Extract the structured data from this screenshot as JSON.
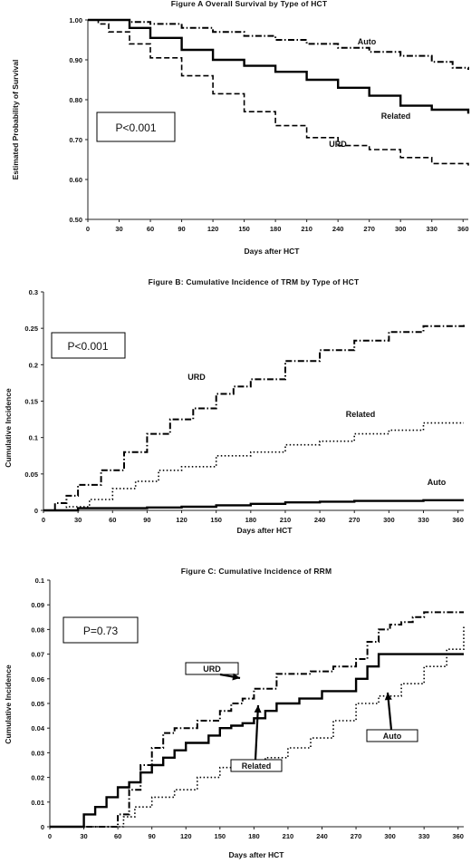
{
  "charts": [
    {
      "title": "Figure A Overall Survival by Type of HCT",
      "xlabel": "Days after HCT",
      "ylabel": "Estimated Probability of Survival",
      "pvalue": "P<0.001",
      "x_ticks": [
        "0",
        "30",
        "60",
        "90",
        "120",
        "150",
        "180",
        "210",
        "240",
        "270",
        "300",
        "330",
        "360"
      ],
      "y_ticks": [
        "0.50",
        "0.60",
        "0.70",
        "0.80",
        "0.90",
        "1.00"
      ],
      "series_labels": [
        "Auto",
        "Related",
        "URD"
      ]
    },
    {
      "title": "Figure B: Cumulative Incidence of TRM by Type of HCT",
      "xlabel": "Days after HCT",
      "ylabel": "Cumulative Incidence",
      "pvalue": "P<0.001",
      "x_ticks": [
        "0",
        "30",
        "60",
        "90",
        "120",
        "150",
        "180",
        "210",
        "240",
        "270",
        "300",
        "330",
        "360"
      ],
      "y_ticks": [
        "0",
        "0.05",
        "0.1",
        "0.15",
        "0.2",
        "0.25",
        "0.3"
      ],
      "series_labels": [
        "URD",
        "Related",
        "Auto"
      ]
    },
    {
      "title": "Figure C: Cumulative Incidence of RRM",
      "xlabel": "Days after HCT",
      "ylabel": "Cumulative Incidence",
      "pvalue": "P=0.73",
      "x_ticks": [
        "0",
        "30",
        "60",
        "90",
        "120",
        "150",
        "180",
        "210",
        "240",
        "270",
        "300",
        "330",
        "360"
      ],
      "y_ticks": [
        "0",
        "0.01",
        "0.02",
        "0.03",
        "0.04",
        "0.05",
        "0.06",
        "0.07",
        "0.08",
        "0.09",
        "0.1"
      ],
      "series_labels": [
        "URD",
        "Related",
        "Auto"
      ]
    }
  ],
  "chart_data": [
    {
      "type": "line",
      "title": "Figure A Overall Survival by Type of HCT",
      "xlabel": "Days after HCT",
      "ylabel": "Estimated Probability of Survival",
      "xlim": [
        0,
        365
      ],
      "ylim": [
        0.5,
        1.0
      ],
      "series": [
        {
          "name": "Auto",
          "style": "dash-dot",
          "x": [
            0,
            20,
            40,
            60,
            90,
            120,
            150,
            180,
            210,
            240,
            270,
            300,
            330,
            350,
            365
          ],
          "y": [
            1.0,
            1.0,
            0.995,
            0.99,
            0.98,
            0.97,
            0.96,
            0.95,
            0.94,
            0.93,
            0.92,
            0.91,
            0.895,
            0.88,
            0.875
          ]
        },
        {
          "name": "Related",
          "style": "solid",
          "x": [
            0,
            20,
            40,
            60,
            90,
            120,
            150,
            180,
            210,
            240,
            270,
            300,
            330,
            365
          ],
          "y": [
            1.0,
            1.0,
            0.98,
            0.955,
            0.925,
            0.9,
            0.885,
            0.87,
            0.85,
            0.83,
            0.81,
            0.785,
            0.775,
            0.765
          ]
        },
        {
          "name": "URD",
          "style": "dashed",
          "x": [
            0,
            10,
            20,
            40,
            60,
            90,
            120,
            150,
            180,
            210,
            240,
            270,
            300,
            330,
            365
          ],
          "y": [
            1.0,
            0.99,
            0.97,
            0.94,
            0.905,
            0.86,
            0.815,
            0.77,
            0.735,
            0.705,
            0.685,
            0.675,
            0.655,
            0.64,
            0.635
          ]
        }
      ]
    },
    {
      "type": "line",
      "title": "Figure B: Cumulative Incidence of TRM by Type of HCT",
      "xlabel": "Days after HCT",
      "ylabel": "Cumulative Incidence",
      "xlim": [
        0,
        365
      ],
      "ylim": [
        0,
        0.3
      ],
      "series": [
        {
          "name": "URD",
          "style": "dash-dot",
          "x": [
            0,
            10,
            20,
            30,
            50,
            70,
            90,
            110,
            130,
            150,
            165,
            180,
            210,
            240,
            270,
            300,
            330,
            365
          ],
          "y": [
            0,
            0.01,
            0.02,
            0.035,
            0.055,
            0.08,
            0.105,
            0.125,
            0.14,
            0.16,
            0.17,
            0.18,
            0.205,
            0.22,
            0.233,
            0.245,
            0.253,
            0.255
          ]
        },
        {
          "name": "Related",
          "style": "dotted",
          "x": [
            0,
            20,
            40,
            60,
            80,
            100,
            120,
            150,
            180,
            210,
            240,
            270,
            300,
            330,
            365
          ],
          "y": [
            0,
            0.005,
            0.015,
            0.03,
            0.04,
            0.055,
            0.06,
            0.075,
            0.08,
            0.09,
            0.095,
            0.105,
            0.11,
            0.12,
            0.12
          ]
        },
        {
          "name": "Auto",
          "style": "solid",
          "x": [
            0,
            30,
            60,
            90,
            120,
            150,
            180,
            210,
            240,
            270,
            300,
            330,
            365
          ],
          "y": [
            0,
            0.003,
            0.003,
            0.004,
            0.005,
            0.007,
            0.009,
            0.011,
            0.012,
            0.013,
            0.013,
            0.014,
            0.014
          ]
        }
      ]
    },
    {
      "type": "line",
      "title": "Figure C: Cumulative Incidence of RRM",
      "xlabel": "Days after HCT",
      "ylabel": "Cumulative Incidence",
      "xlim": [
        0,
        365
      ],
      "ylim": [
        0,
        0.1
      ],
      "series": [
        {
          "name": "URD",
          "style": "dash-dot",
          "x": [
            0,
            55,
            60,
            70,
            80,
            90,
            100,
            110,
            130,
            150,
            160,
            170,
            180,
            200,
            210,
            230,
            250,
            270,
            280,
            290,
            300,
            310,
            320,
            330,
            345,
            365
          ],
          "y": [
            0,
            0,
            0.005,
            0.015,
            0.025,
            0.032,
            0.038,
            0.04,
            0.043,
            0.047,
            0.05,
            0.052,
            0.056,
            0.062,
            0.062,
            0.063,
            0.065,
            0.068,
            0.075,
            0.08,
            0.082,
            0.083,
            0.085,
            0.087,
            0.087,
            0.087
          ]
        },
        {
          "name": "Related",
          "style": "solid",
          "x": [
            0,
            20,
            30,
            40,
            50,
            60,
            70,
            80,
            90,
            100,
            110,
            120,
            130,
            140,
            150,
            160,
            170,
            180,
            190,
            200,
            220,
            240,
            260,
            270,
            280,
            290,
            300,
            330,
            365
          ],
          "y": [
            0,
            0,
            0.005,
            0.008,
            0.012,
            0.016,
            0.018,
            0.022,
            0.025,
            0.028,
            0.031,
            0.034,
            0.034,
            0.037,
            0.04,
            0.041,
            0.042,
            0.044,
            0.047,
            0.05,
            0.052,
            0.055,
            0.055,
            0.06,
            0.065,
            0.07,
            0.07,
            0.07,
            0.07
          ]
        },
        {
          "name": "Auto",
          "style": "dotted",
          "x": [
            0,
            55,
            65,
            75,
            90,
            110,
            130,
            150,
            170,
            190,
            210,
            230,
            250,
            270,
            290,
            310,
            330,
            350,
            365
          ],
          "y": [
            0,
            0,
            0.004,
            0.008,
            0.012,
            0.015,
            0.02,
            0.024,
            0.026,
            0.028,
            0.032,
            0.036,
            0.043,
            0.05,
            0.053,
            0.058,
            0.065,
            0.072,
            0.082
          ]
        }
      ]
    }
  ]
}
